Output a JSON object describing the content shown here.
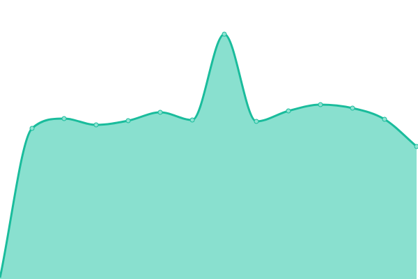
{
  "chart_data": {
    "type": "area",
    "x": [
      0,
      1,
      2,
      3,
      4,
      5,
      6,
      7,
      8,
      9,
      10,
      11,
      12,
      13
    ],
    "values": [
      2,
      216,
      230,
      221,
      227,
      239,
      228,
      351,
      226,
      241,
      250,
      245,
      229,
      190
    ],
    "ylim": [
      0,
      400
    ],
    "grid": false,
    "axes_visible": false,
    "smooth": true,
    "colors": {
      "line": "#1abc9c",
      "fill": "#89e0cf",
      "marker_fill": "#8fe3d2",
      "marker_stroke": "#1abc9c"
    }
  }
}
